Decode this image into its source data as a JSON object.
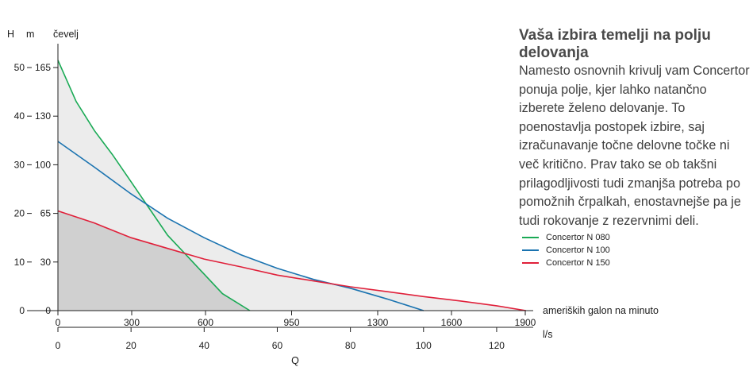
{
  "chart_data": {
    "type": "area",
    "x_primary": {
      "unit": "ameriških galon na minuto",
      "ticks": [
        0,
        300,
        600,
        950,
        1300,
        1600,
        1900
      ],
      "range": [
        0,
        1900
      ]
    },
    "x_secondary": {
      "unit": "l/s",
      "ticks": [
        0,
        20,
        40,
        60,
        80,
        100,
        120
      ],
      "range": [
        0,
        130
      ]
    },
    "xlabel": "Q",
    "y_primary": {
      "label": "H",
      "unit": "m",
      "ticks": [
        0,
        10,
        20,
        30,
        40,
        50
      ],
      "range": [
        0,
        55
      ]
    },
    "y_secondary": {
      "unit": "čevelj",
      "ticks": [
        0,
        30,
        65,
        100,
        130,
        165
      ]
    },
    "series": [
      {
        "name": "Concertor N 080",
        "color": "#1aaa55",
        "points": [
          [
            0,
            51.5
          ],
          [
            5,
            43
          ],
          [
            10,
            37
          ],
          [
            15,
            32
          ],
          [
            20,
            26.5
          ],
          [
            25,
            21
          ],
          [
            30,
            15.5
          ],
          [
            35,
            11.5
          ],
          [
            40,
            7.5
          ],
          [
            45,
            3.5
          ],
          [
            52.5,
            0
          ]
        ]
      },
      {
        "name": "Concertor N 100",
        "color": "#1a73b0",
        "points": [
          [
            0,
            34.8
          ],
          [
            10,
            29.5
          ],
          [
            20,
            24
          ],
          [
            30,
            19
          ],
          [
            40,
            15
          ],
          [
            50,
            11.5
          ],
          [
            60,
            8.7
          ],
          [
            70,
            6.4
          ],
          [
            80,
            4.6
          ],
          [
            90,
            2.4
          ],
          [
            100,
            0
          ]
        ]
      },
      {
        "name": "Concertor N 150",
        "color": "#e0203a",
        "points": [
          [
            0,
            20.5
          ],
          [
            10,
            18
          ],
          [
            20,
            15
          ],
          [
            30,
            12.8
          ],
          [
            40,
            10.6
          ],
          [
            50,
            9
          ],
          [
            60,
            7.3
          ],
          [
            70,
            6.1
          ],
          [
            80,
            4.9
          ],
          [
            90,
            3.9
          ],
          [
            100,
            2.9
          ],
          [
            110,
            2
          ],
          [
            120,
            1
          ],
          [
            128,
            0
          ]
        ]
      }
    ]
  },
  "side": {
    "title": "Vaša izbira temelji na polju delovanja",
    "body": "Namesto osnovnih krivulj vam Concertor ponuja polje, kjer lahko natančno izberete želeno delovanje. To poenostavlja postopek izbire, saj izračunavanje točne delovne točke ni več kritično. Prav tako se ob takšni prilagodljivosti tudi zmanjša potreba po pomožnih črpalkah, enostavnejše pa je tudi rokovanje z rezervnimi deli."
  },
  "colors": {
    "field_light": "#ececec",
    "field_dark": "#d0d0d0"
  }
}
